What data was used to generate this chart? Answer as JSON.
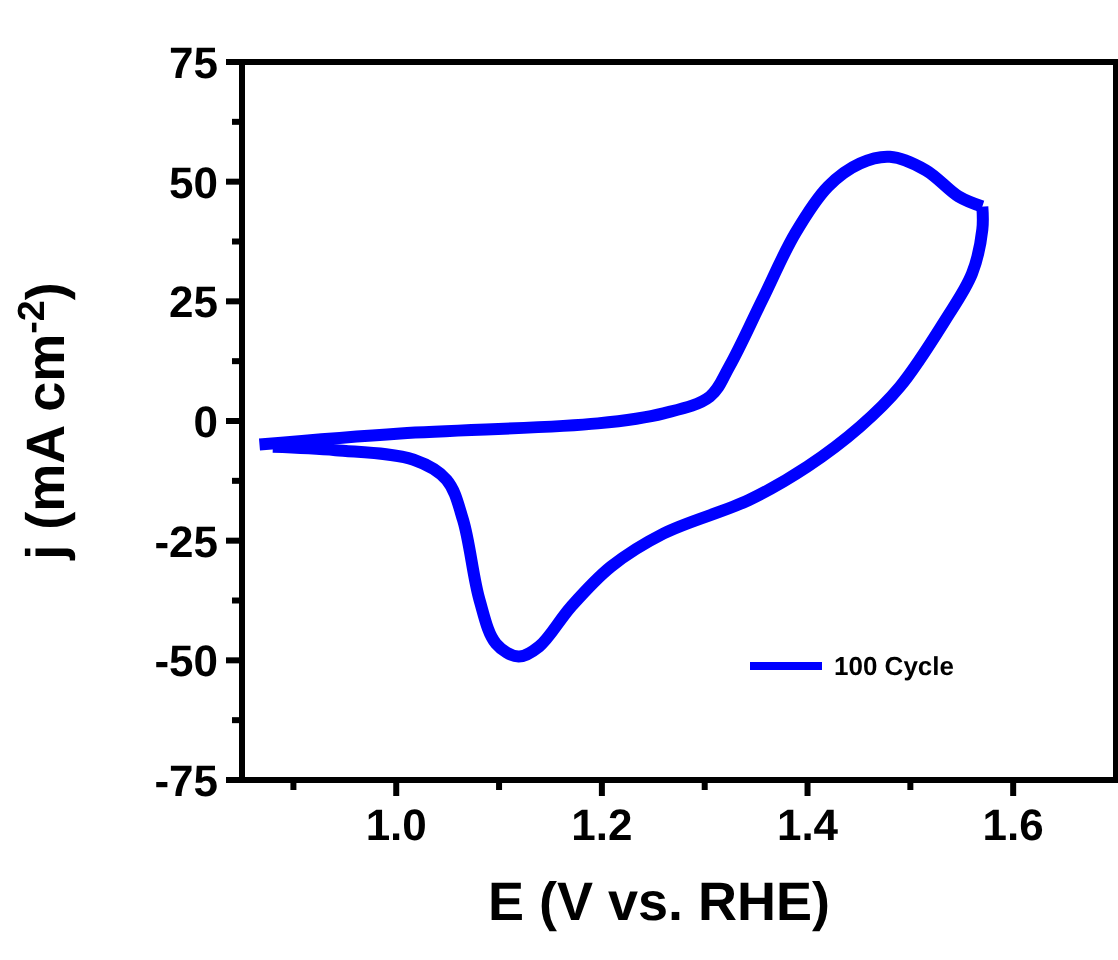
{
  "chart_data": {
    "type": "line",
    "xlabel": "E (V vs. RHE)",
    "ylabel": "j (mA cm$^{-2}$)",
    "xlim": [
      0.85,
      1.7
    ],
    "xticks": [
      {
        "value": 0.9,
        "label": null
      },
      {
        "value": 1.0,
        "label": "1.0"
      },
      {
        "value": 1.1,
        "label": null
      },
      {
        "value": 1.2,
        "label": "1.2"
      },
      {
        "value": 1.3,
        "label": null
      },
      {
        "value": 1.4,
        "label": "1.4"
      },
      {
        "value": 1.5,
        "label": null
      },
      {
        "value": 1.6,
        "label": "1.6"
      }
    ],
    "ylim": [
      -75,
      75
    ],
    "yticks": [
      -75,
      {
        "value": -62.5,
        "label": null
      },
      -50,
      {
        "value": -37.5,
        "label": null
      },
      -25,
      {
        "value": -12.5,
        "label": null
      },
      0,
      {
        "value": 12.5,
        "label": null
      },
      25,
      {
        "value": 37.5,
        "label": null
      },
      50,
      {
        "value": 62.5,
        "label": null
      },
      75
    ],
    "legend": "bottom right",
    "grid": false,
    "marker": "none",
    "line_style": "solid",
    "series": [
      {
        "name": "100 Cycle",
        "color": "#0000ff",
        "x": [
          0.867,
          1.004,
          1.196,
          1.26,
          1.305,
          1.324,
          1.356,
          1.388,
          1.42,
          1.451,
          1.48,
          1.515,
          1.547,
          1.57
        ],
        "values": [
          -4.9,
          -2.6,
          -0.5,
          1.6,
          5.1,
          11.4,
          25.3,
          39.2,
          49,
          53.8,
          55.2,
          52.4,
          46.9,
          44.8
        ]
      },
      {
        "color": "#0000ff",
        "x": [
          1.57,
          1.57,
          1.56,
          1.534,
          1.49,
          1.451,
          1.4,
          1.343,
          1.26,
          1.209,
          1.17,
          1.139,
          1.119,
          1.097,
          1.081,
          1.065,
          1.049,
          1.017,
          0.941,
          0.88
        ],
        "values": [
          44.8,
          40,
          30.8,
          21.1,
          7.2,
          -1.2,
          -9.5,
          -16.5,
          -23.5,
          -30.4,
          -38.8,
          -47.1,
          -49.2,
          -46.5,
          -37.4,
          -20.7,
          -12.3,
          -8.1,
          -6.1,
          -5.4
        ]
      }
    ]
  }
}
